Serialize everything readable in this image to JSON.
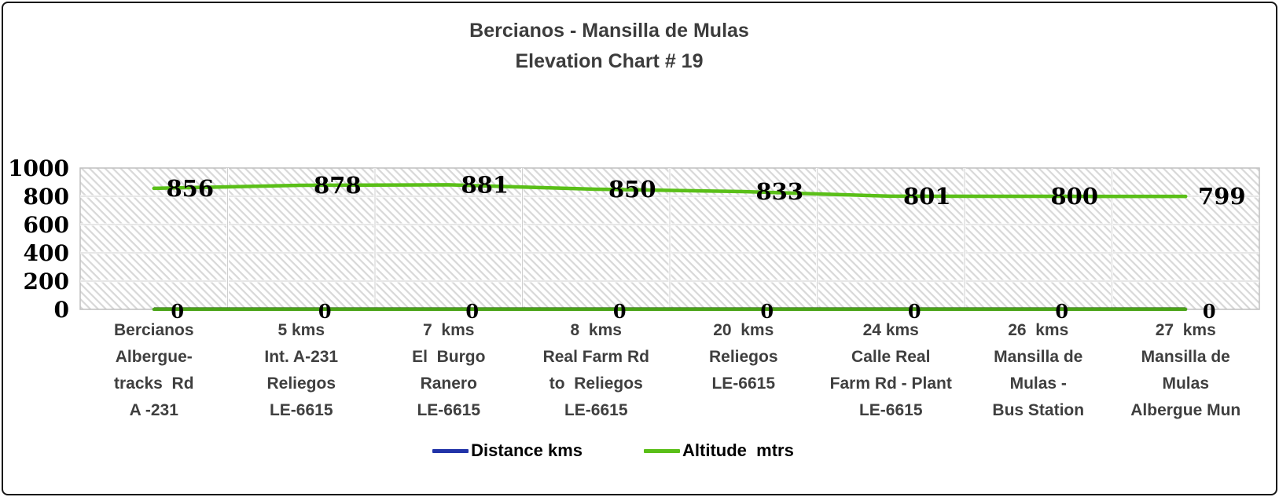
{
  "title": {
    "line1": "Bercianos - Mansilla de Mulas",
    "line2": "Elevation Chart # 19"
  },
  "chart_data": {
    "type": "line",
    "title": "Bercianos - Mansilla de Mulas Elevation Chart # 19",
    "categories": [
      [
        "Bercianos",
        "Albergue-",
        "tracks  Rd",
        "A -231"
      ],
      [
        "5 kms",
        "Int. A-231",
        "Reliegos",
        "LE-6615"
      ],
      [
        "7  kms",
        "El  Burgo",
        "Ranero",
        "LE-6615"
      ],
      [
        "8  kms",
        "Real Farm Rd",
        "to  Reliegos",
        "LE-6615"
      ],
      [
        "20  kms",
        "Reliegos",
        "LE-6615"
      ],
      [
        "24 kms",
        "Calle Real",
        "Farm Rd - Plant",
        "LE-6615"
      ],
      [
        "26  kms",
        "Mansilla de",
        "Mulas -",
        "Bus Station"
      ],
      [
        "27  kms",
        "Mansilla de",
        "Mulas",
        "Albergue Mun"
      ]
    ],
    "series": [
      {
        "name": "Distance kms",
        "legend_color": "#2133a8",
        "line_color": "#4aa318",
        "values": [
          0,
          0,
          0,
          0,
          0,
          0,
          0,
          0
        ],
        "labels": [
          "0",
          "0",
          "0",
          "0",
          "0",
          "0",
          "0",
          "0"
        ]
      },
      {
        "name": "Altitude  mtrs",
        "legend_color": "#5abf18",
        "line_color": "#5abf18",
        "values": [
          856,
          878,
          881,
          850,
          833,
          801,
          800,
          799
        ],
        "labels": [
          "856",
          "878",
          "881",
          "850",
          "833",
          "801",
          "800",
          "799"
        ]
      }
    ],
    "ylim": [
      0,
      1000
    ],
    "yticks": [
      0,
      200,
      400,
      600,
      800,
      1000
    ],
    "grid": true,
    "legend_position": "bottom",
    "plot_background": "diagonal-hatch",
    "axis_color": "#bfbfbf",
    "gridline_color": "#cfcfcf"
  }
}
